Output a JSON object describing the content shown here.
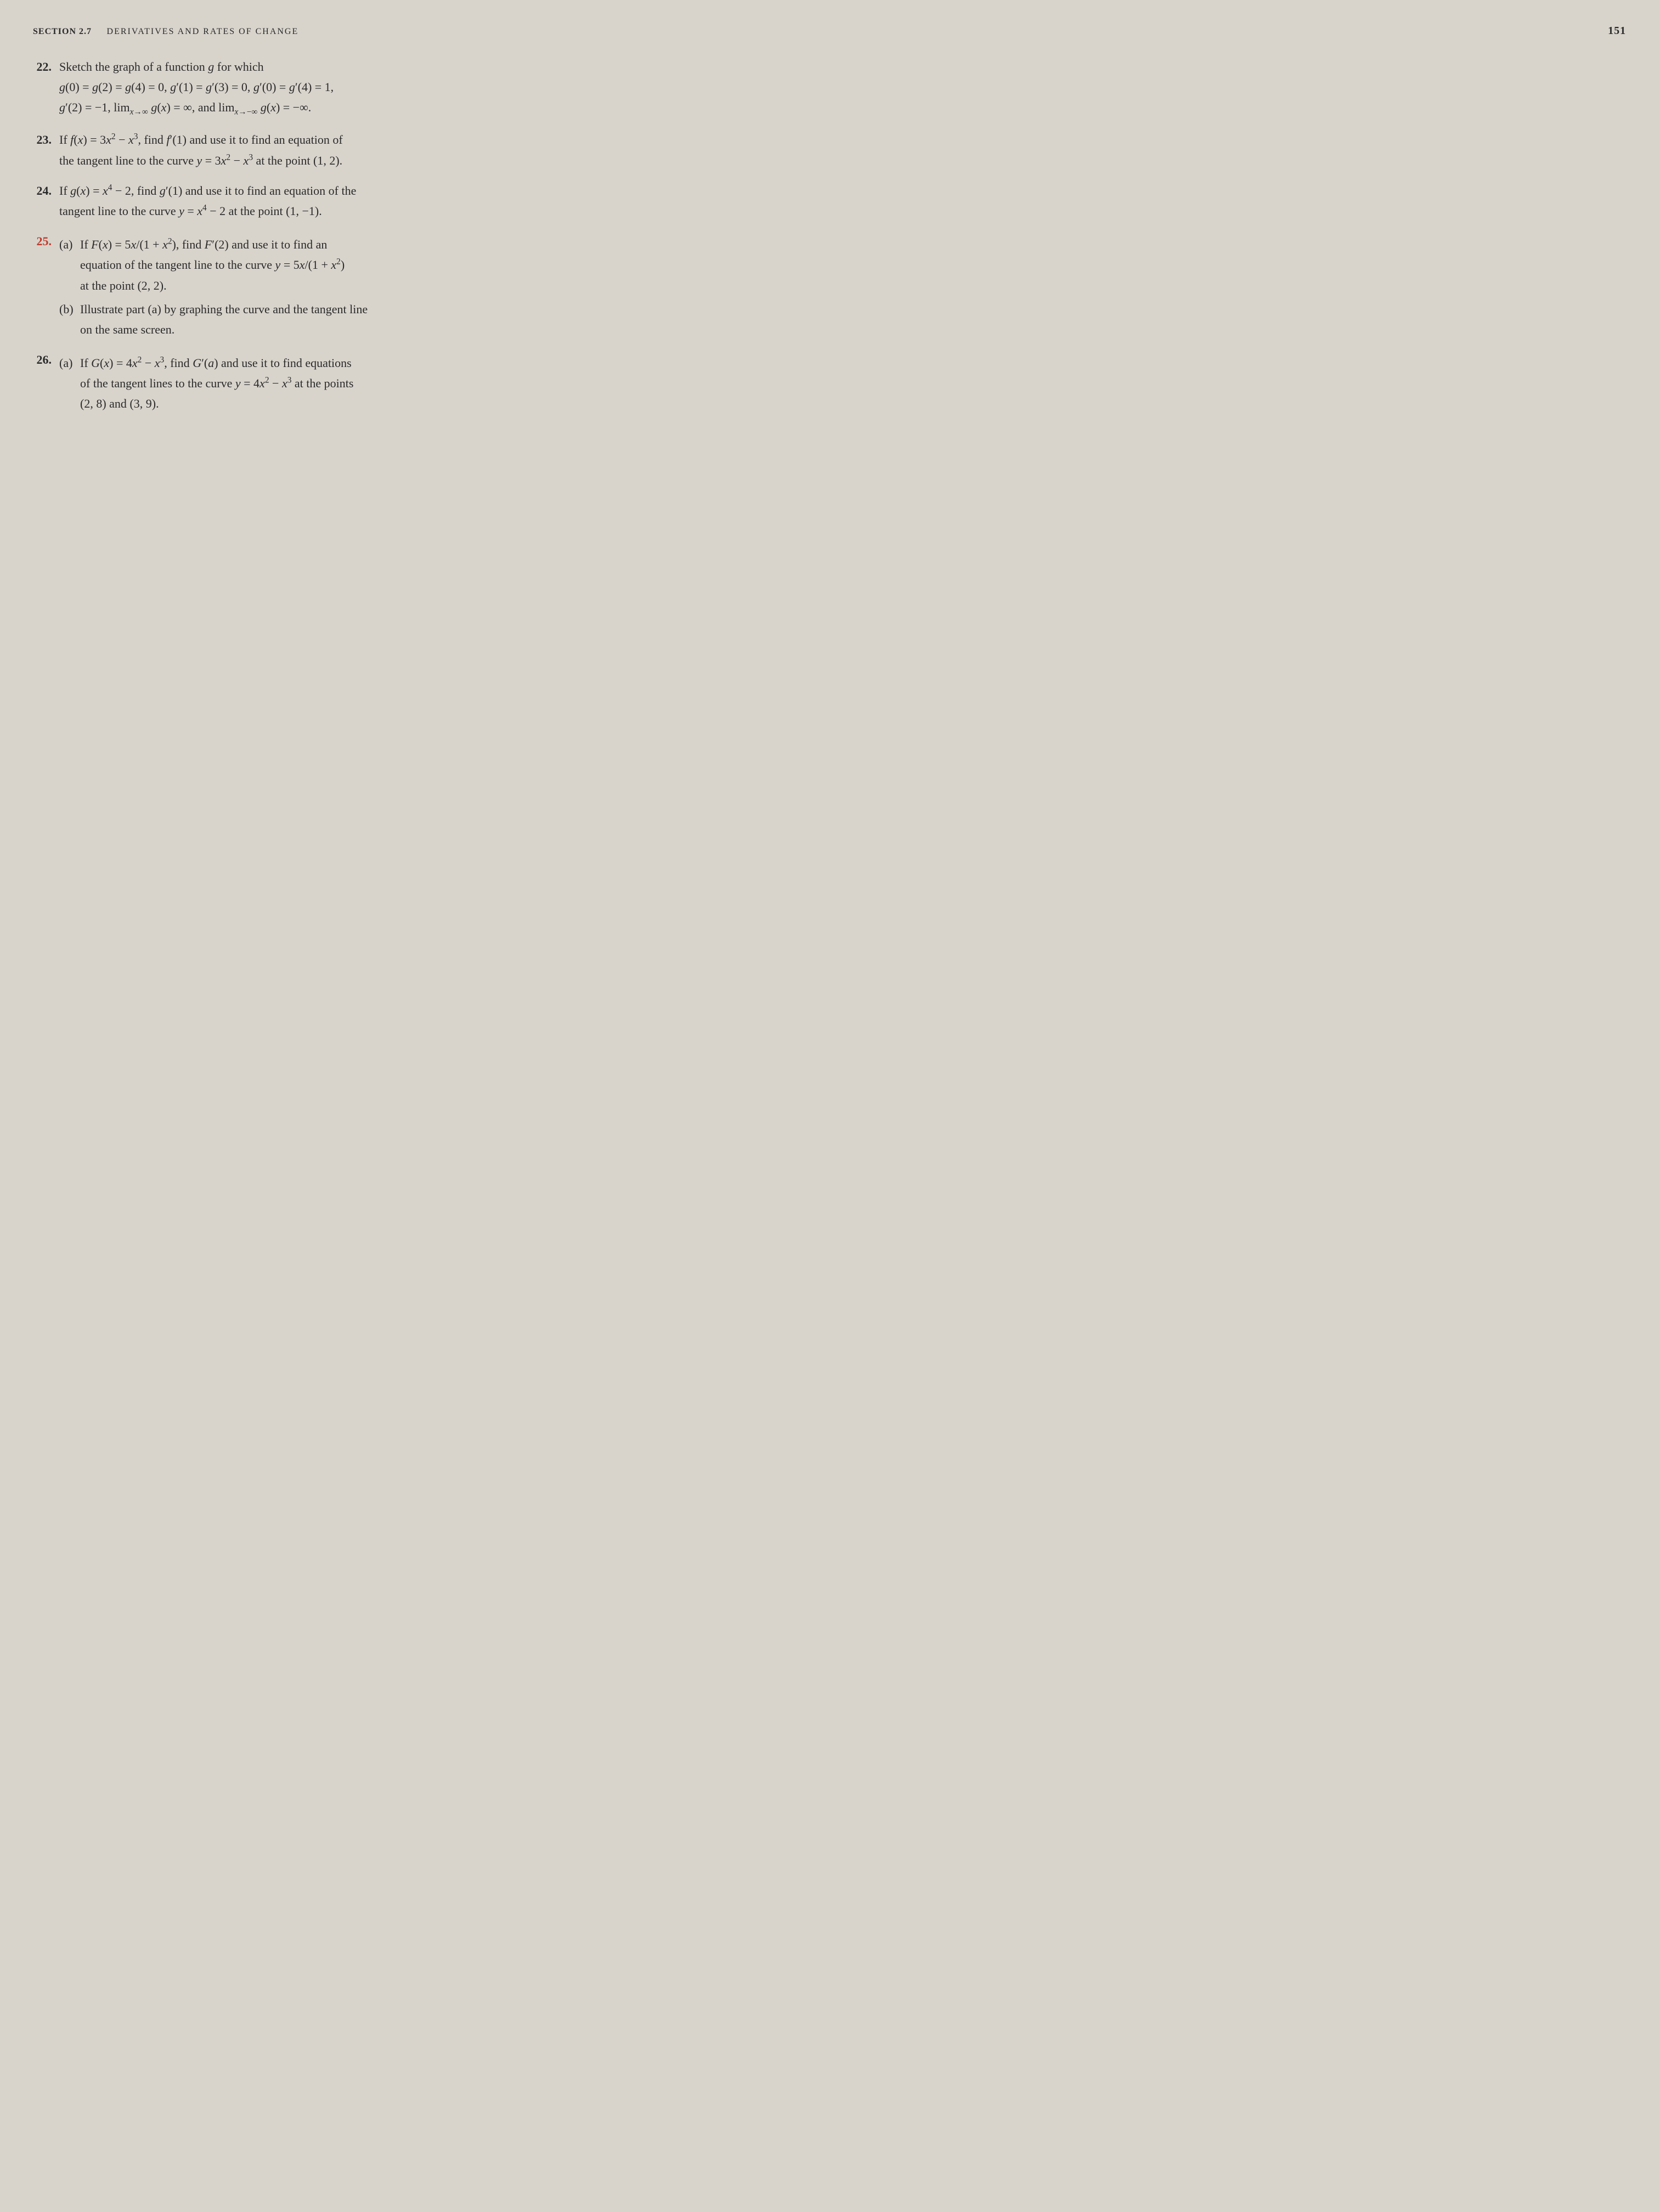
{
  "header": {
    "section_label": "SECTION 2.7",
    "section_title": "DERIVATIVES AND RATES OF CHANGE",
    "page_number": "151"
  },
  "problems": [
    {
      "number": "22.",
      "highlighted": false,
      "lines": [
        "Sketch the graph of a function g for which",
        "g(0) = g(2) = g(4) = 0, g′(1) = g′(3) = 0, g′(0) = g′(4) = 1,",
        "g′(2) = −1, lim_{x→∞} g(x) = ∞, and lim_{x→−∞} g(x) = −∞."
      ]
    },
    {
      "number": "23.",
      "highlighted": false,
      "lines": [
        "If f(x) = 3x² − x³, find f′(1) and use it to find an equation of",
        "the tangent line to the curve y = 3x² − x³ at the point (1, 2)."
      ]
    },
    {
      "number": "24.",
      "highlighted": false,
      "lines": [
        "If g(x) = x⁴ − 2, find g′(1) and use it to find an equation of the",
        "tangent line to the curve y = x⁴ − 2 at the point (1, −1)."
      ]
    },
    {
      "number": "25.",
      "highlighted": true,
      "subs": [
        {
          "label": "(a)",
          "lines": [
            "If F(x) = 5x/(1 + x²), find F′(2) and use it to find an",
            "equation of the tangent line to the curve y = 5x/(1 + x²)",
            "at the point (2, 2)."
          ]
        },
        {
          "label": "(b)",
          "lines": [
            "Illustrate part (a) by graphing the curve and the tangent line",
            "on the same screen."
          ]
        }
      ]
    },
    {
      "number": "26.",
      "highlighted": false,
      "subs": [
        {
          "label": "(a)",
          "lines": [
            "If G(x) = 4x² − x³, find G′(a) and use it to find equations",
            "of the tangent lines to the curve y = 4x² − x³ at the points",
            "(2, 8) and (3, 9)."
          ]
        }
      ]
    }
  ],
  "colors": {
    "background": "#d8d4cc",
    "text": "#2a2a2a",
    "highlight": "#c0392b"
  },
  "typography": {
    "body_fontsize": 22,
    "header_fontsize": 16,
    "pagenum_fontsize": 20,
    "font_family": "Georgia, Times New Roman, serif"
  }
}
